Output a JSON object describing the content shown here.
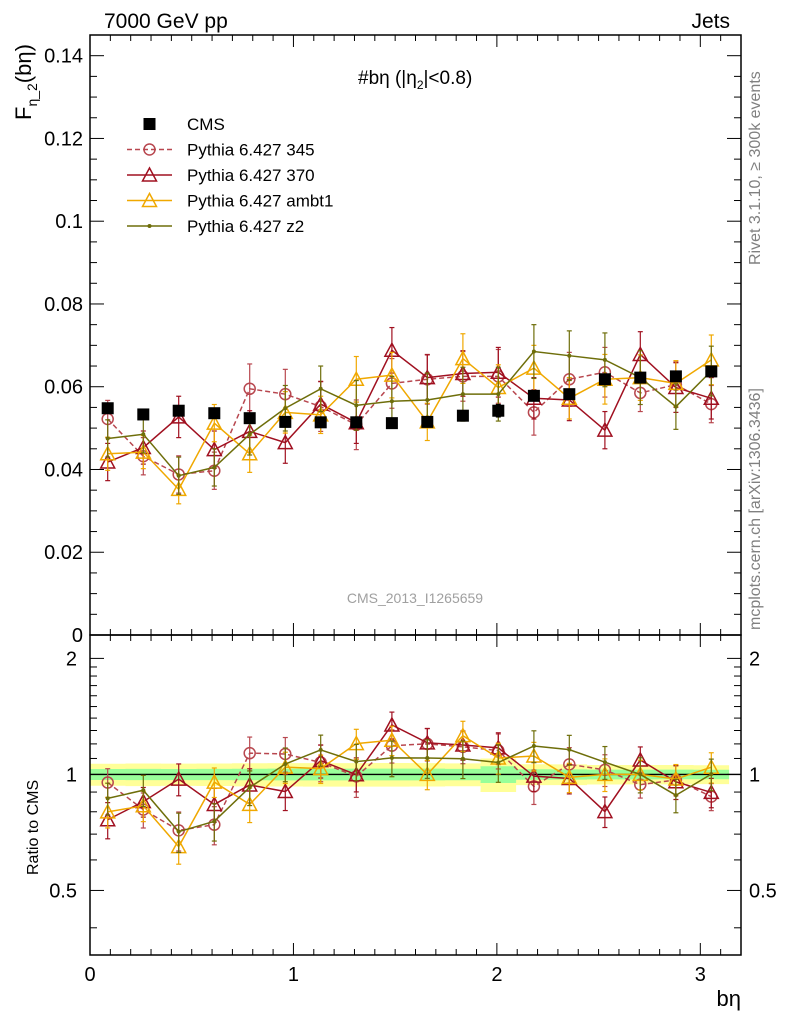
{
  "header": {
    "left": "7000 GeV pp",
    "right": "Jets"
  },
  "side_notes": {
    "top": "Rivet 3.1.10, ≥ 300k events",
    "bottom": "mcplots.cern.ch [arXiv:1306.3436]"
  },
  "chart_data": {
    "type": "line",
    "title": "#bη (|η",
    "title_sub": "2",
    "title_tail": "|<0.8)",
    "watermark": "CMS_2013_I1265659",
    "xlabel": "bη",
    "ylabel": "F",
    "ylabel_sub": "η_2",
    "ylabel_tail": "(bη)",
    "ratio_ylabel": "Ratio to CMS",
    "xlim": [
      0,
      3.2
    ],
    "ylim": [
      0,
      0.145
    ],
    "ratio_ylim": [
      0.34,
      2.3
    ],
    "x_ticks": [
      "0",
      "1",
      "2",
      "3"
    ],
    "y_ticks": [
      "0",
      "0.02",
      "0.04",
      "0.06",
      "0.08",
      "0.1",
      "0.12",
      "0.14"
    ],
    "ratio_ticks": [
      "0.5",
      "1",
      "2"
    ],
    "x": [
      0.087,
      0.262,
      0.436,
      0.611,
      0.785,
      0.96,
      1.134,
      1.309,
      1.484,
      1.658,
      1.833,
      2.007,
      2.182,
      2.356,
      2.531,
      2.705,
      2.88,
      3.054
    ],
    "series": [
      {
        "name": "CMS",
        "color": "#000000",
        "marker": "square",
        "values": [
          0.0548,
          0.0533,
          0.0542,
          0.0536,
          0.0524,
          0.0515,
          0.0514,
          0.0514,
          0.0512,
          0.0515,
          0.053,
          0.0542,
          0.0578,
          0.0582,
          0.0618,
          0.0622,
          0.0625,
          0.0637
        ],
        "errors": [
          0.001,
          0.001,
          0.001,
          0.001,
          0.001,
          0.001,
          0.001,
          0.001,
          0.001,
          0.001,
          0.001,
          0.0015,
          0.001,
          0.001,
          0.001,
          0.001,
          0.001,
          0.001
        ]
      },
      {
        "name": "Pythia 6.427 345",
        "color": "#b8474f",
        "marker": "circle",
        "dash": true,
        "values": [
          0.0522,
          0.0432,
          0.0388,
          0.0397,
          0.0595,
          0.0582,
          0.0552,
          0.0508,
          0.0608,
          0.0618,
          0.0625,
          0.0625,
          0.0538,
          0.0618,
          0.0635,
          0.0585,
          0.0605,
          0.0558
        ],
        "errors": [
          0.0045,
          0.0045,
          0.0045,
          0.0045,
          0.006,
          0.006,
          0.006,
          0.006,
          0.006,
          0.006,
          0.006,
          0.0065,
          0.0055,
          0.0065,
          0.006,
          0.0045,
          0.0055,
          0.0045
        ]
      },
      {
        "name": "Pythia 6.427 370",
        "color": "#a01020",
        "marker": "triangle",
        "values": [
          0.0418,
          0.0453,
          0.0527,
          0.0448,
          0.0492,
          0.0465,
          0.0558,
          0.0513,
          0.0688,
          0.0622,
          0.0632,
          0.0635,
          0.0572,
          0.0568,
          0.0495,
          0.0678,
          0.0598,
          0.0572
        ],
        "errors": [
          0.0045,
          0.004,
          0.005,
          0.0045,
          0.005,
          0.005,
          0.0055,
          0.005,
          0.0055,
          0.0055,
          0.0055,
          0.006,
          0.005,
          0.005,
          0.0045,
          0.0055,
          0.006,
          0.005
        ]
      },
      {
        "name": "Pythia 6.427 ambt1",
        "color": "#f0a800",
        "marker": "triangle",
        "values": [
          0.0438,
          0.0442,
          0.0352,
          0.0512,
          0.0438,
          0.0538,
          0.0532,
          0.0618,
          0.0628,
          0.0515,
          0.0668,
          0.0598,
          0.0645,
          0.0572,
          0.0618,
          0.0622,
          0.0608,
          0.0665
        ],
        "errors": [
          0.004,
          0.004,
          0.0035,
          0.0045,
          0.0045,
          0.005,
          0.0045,
          0.0055,
          0.0055,
          0.0045,
          0.006,
          0.0055,
          0.0055,
          0.005,
          0.006,
          0.0055,
          0.0055,
          0.006
        ]
      },
      {
        "name": "Pythia 6.427 z2",
        "color": "#6e6e0a",
        "marker": "dot",
        "values": [
          0.0475,
          0.0485,
          0.0385,
          0.0405,
          0.0485,
          0.0548,
          0.0595,
          0.0555,
          0.0565,
          0.0568,
          0.0582,
          0.0582,
          0.0685,
          0.0675,
          0.0665,
          0.0622,
          0.0552,
          0.0638
        ],
        "errors": [
          0.0045,
          0.0045,
          0.0045,
          0.0045,
          0.005,
          0.0055,
          0.0055,
          0.006,
          0.006,
          0.0065,
          0.0065,
          0.0065,
          0.0065,
          0.006,
          0.0065,
          0.0065,
          0.0055,
          0.006
        ]
      }
    ]
  }
}
